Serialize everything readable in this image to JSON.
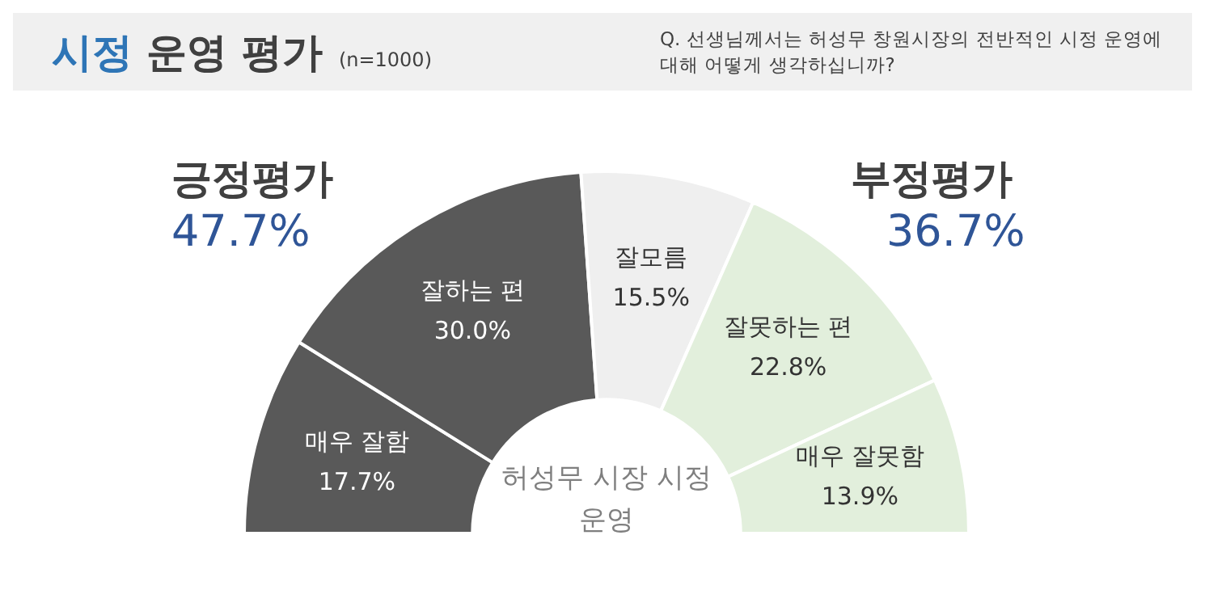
{
  "chart_data": {
    "type": "donut",
    "title": "시정 운영 평가",
    "subtitle": "(n=1000)",
    "annotations": [
      "Q. 선생님께서는 허성무 창원시장의 전반적인 시정 운영에 대해 어떻게 생각하십니까?",
      "허성무 시장 시정 운영",
      "긍정평가",
      "47.7%",
      "부정평가",
      "36.7%"
    ],
    "categories": [
      "매우 잘함",
      "잘하는 편",
      "잘모름",
      "잘못하는 편",
      "매우 잘못함"
    ],
    "values": [
      17.7,
      30.0,
      15.5,
      22.8,
      13.9
    ],
    "value_labels": [
      "17.7%",
      "30.0%",
      "15.5%",
      "22.8%",
      "13.9%"
    ],
    "colors": [
      "#595959",
      "#595959",
      "#efefef",
      "#e2efdc",
      "#e2efdc"
    ],
    "legend": false
  }
}
